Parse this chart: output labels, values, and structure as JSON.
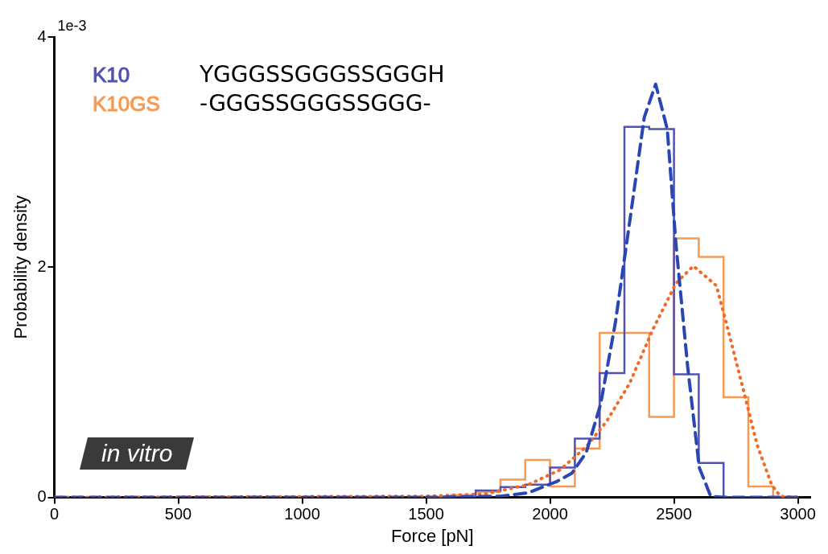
{
  "chart_data": {
    "type": "step",
    "xlabel": "Force [pN]",
    "ylabel": "Probability density",
    "x": [
      1500,
      1600,
      1700,
      1800,
      1900,
      2000,
      2100,
      2200,
      2300,
      2400,
      2500,
      2600,
      2700,
      2800,
      2900,
      3000
    ],
    "series": [
      {
        "name": "K10",
        "color": "#5252b3",
        "values": [
          0,
          0,
          0.06,
          0.09,
          0.11,
          0.26,
          0.51,
          1.08,
          3.22,
          3.2,
          1.07,
          0.3,
          0,
          0,
          0,
          0
        ]
      },
      {
        "name": "K10GS",
        "color": "#f79a52",
        "values": [
          0,
          0.02,
          0.05,
          0.155,
          0.325,
          0.095,
          0.425,
          1.43,
          1.43,
          0.7,
          2.25,
          2.09,
          0.87,
          0.095,
          0,
          0
        ]
      },
      {
        "type": "line",
        "color": "#2a46b5",
        "line_style": "dashed",
        "x": [
          0,
          1500,
          1800,
          1912,
          2029,
          2088,
          2146,
          2204,
          2263,
          2321,
          2380,
          2426,
          2473,
          2508,
          2555,
          2602,
          2648,
          2700,
          3000
        ],
        "values": [
          0,
          0,
          0.01,
          0.04,
          0.14,
          0.21,
          0.39,
          0.81,
          1.51,
          2.39,
          3.3,
          3.59,
          3.2,
          2.2,
          1.14,
          0.26,
          0.01,
          0,
          0
        ]
      },
      {
        "type": "line",
        "color": "#f26a28",
        "line_style": "dotted",
        "x": [
          0,
          1500,
          1737,
          1912,
          2041,
          2146,
          2228,
          2321,
          2415,
          2508,
          2578,
          2671,
          2718,
          2777,
          2835,
          2894,
          2929,
          3000
        ],
        "values": [
          0,
          0.01,
          0.03,
          0.11,
          0.24,
          0.44,
          0.66,
          0.99,
          1.46,
          1.86,
          2.01,
          1.84,
          1.46,
          0.96,
          0.46,
          0.11,
          0.01,
          0
        ]
      }
    ],
    "xlim": [
      0,
      3050
    ],
    "xticks": [
      0,
      500,
      1000,
      1500,
      2000,
      2500,
      3000
    ],
    "ylim": [
      0,
      4
    ],
    "yticks": [
      0,
      2,
      4
    ],
    "grid": false,
    "legend": "top left",
    "marker": "none",
    "annotations": [
      "1e-3",
      "in vitro",
      "YGGGSSGGGSSGGGH",
      "-GGGSSGGGSSGGG-"
    ]
  }
}
